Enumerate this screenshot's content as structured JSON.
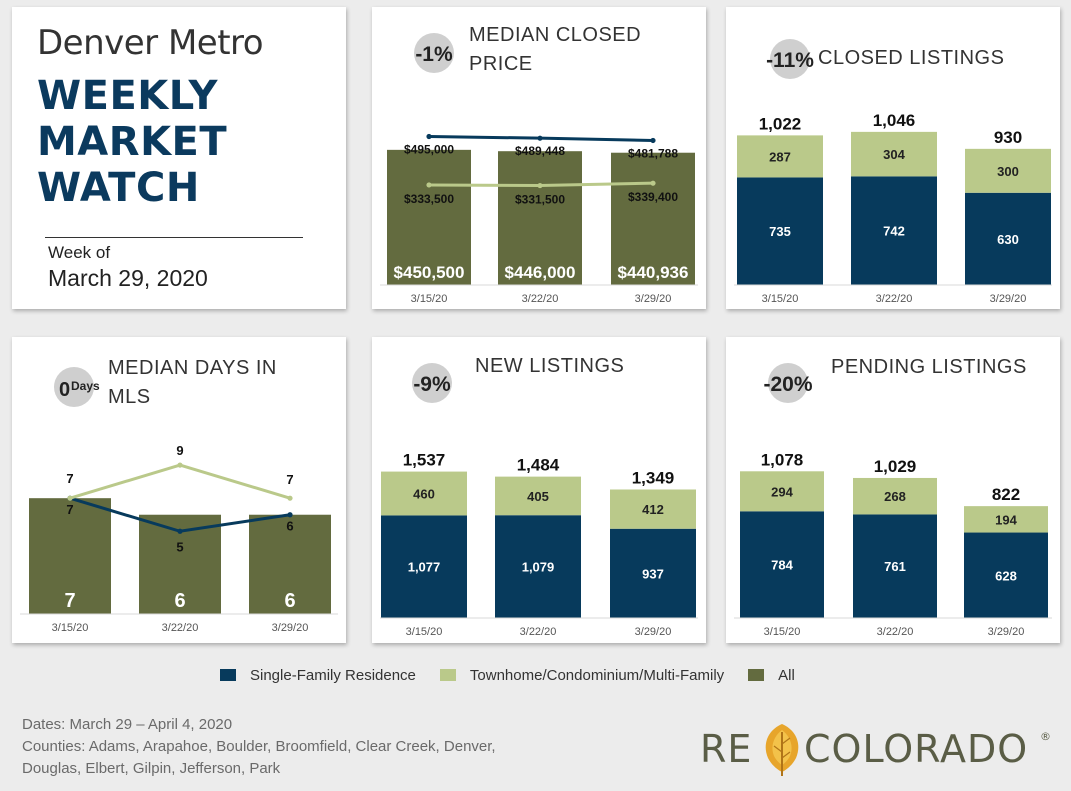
{
  "header": {
    "city": "Denver Metro",
    "line1": "WEEKLY",
    "line2": "MARKET",
    "line3": "WATCH",
    "week_label": "Week of",
    "week_date": "March 29, 2020"
  },
  "colors": {
    "sfr": "#073a5c",
    "townhome": "#bac98a",
    "all": "#636b3f",
    "badge": "#cfcfcf",
    "pill": "#bfbfbf"
  },
  "legend": {
    "sfr": "Single-Family Residence",
    "townhome": "Townhome/Condominium/Multi-Family",
    "all": "All"
  },
  "footer": {
    "line1": "Dates: March 29 – April 4, 2020",
    "line2": "Counties: Adams, Arapahoe, Boulder, Broomfield, Clear Creek, Denver,",
    "line3": "Douglas, Elbert, Gilpin, Jefferson, Park"
  },
  "logo": {
    "left": "RE",
    "right": "COLORADO",
    "mark": "®"
  },
  "chart_data": [
    {
      "id": "median-closed-price",
      "type": "bar+line",
      "title": [
        "MEDIAN CLOSED",
        "PRICE"
      ],
      "badge": "-1%",
      "categories": [
        "3/15/20",
        "3/22/20",
        "3/29/20"
      ],
      "ylim": [
        0,
        560000
      ],
      "bars": {
        "name": "All",
        "values": [
          450500,
          446000,
          440936
        ],
        "labels": [
          "$450,500",
          "$446,000",
          "$440,936"
        ]
      },
      "lines": [
        {
          "name": "Single-Family Residence",
          "values": [
            495000,
            489448,
            481788
          ],
          "labels": [
            "$495,000",
            "$489,448",
            "$481,788"
          ]
        },
        {
          "name": "Townhome/Condominium/Multi-Family",
          "values": [
            333500,
            331500,
            339400
          ],
          "labels": [
            "$333,500",
            "$331,500",
            "$339,400"
          ]
        }
      ]
    },
    {
      "id": "closed-listings",
      "type": "stacked-bar",
      "title": [
        "CLOSED LISTINGS"
      ],
      "badge": "-11%",
      "categories": [
        "3/15/20",
        "3/22/20",
        "3/29/20"
      ],
      "ylim": [
        0,
        1250
      ],
      "series": [
        {
          "name": "Single-Family Residence",
          "values": [
            735,
            742,
            630
          ]
        },
        {
          "name": "Townhome/Condominium/Multi-Family",
          "values": [
            287,
            304,
            300
          ]
        }
      ],
      "totals": [
        "1,022",
        "1,046",
        "930"
      ]
    },
    {
      "id": "median-days-in-mls",
      "type": "bar+line",
      "title": [
        "MEDIAN DAYS IN",
        "MLS"
      ],
      "badge": "0",
      "badge_suffix": "Days",
      "categories": [
        "3/15/20",
        "3/22/20",
        "3/29/20"
      ],
      "ylim": [
        0,
        11
      ],
      "bars": {
        "name": "All",
        "values": [
          7,
          6,
          6
        ],
        "labels": [
          "7",
          "6",
          "6"
        ]
      },
      "lines": [
        {
          "name": "Single-Family Residence",
          "values": [
            7,
            5,
            6
          ],
          "labels": [
            "7",
            "5",
            "6"
          ]
        },
        {
          "name": "Townhome/Condominium/Multi-Family",
          "values": [
            7,
            9,
            7
          ],
          "labels": [
            "7",
            "9",
            "7"
          ]
        }
      ]
    },
    {
      "id": "new-listings",
      "type": "stacked-bar",
      "title": [
        "NEW LISTINGS"
      ],
      "badge": "-9%",
      "categories": [
        "3/15/20",
        "3/22/20",
        "3/29/20"
      ],
      "ylim": [
        0,
        1900
      ],
      "series": [
        {
          "name": "Single-Family Residence",
          "values": [
            1077,
            1079,
            937
          ],
          "labels": [
            "1,077",
            "1,079",
            "937"
          ]
        },
        {
          "name": "Townhome/Condominium/Multi-Family",
          "values": [
            460,
            405,
            412
          ]
        }
      ],
      "totals": [
        "1,537",
        "1,484",
        "1,349"
      ]
    },
    {
      "id": "pending-listings",
      "type": "stacked-bar",
      "title": [
        "PENDING LISTINGS"
      ],
      "badge": "-20%",
      "categories": [
        "3/15/20",
        "3/22/20",
        "3/29/20"
      ],
      "ylim": [
        0,
        1330
      ],
      "series": [
        {
          "name": "Single-Family Residence",
          "values": [
            784,
            761,
            628
          ]
        },
        {
          "name": "Townhome/Condominium/Multi-Family",
          "values": [
            294,
            268,
            194
          ]
        }
      ],
      "totals": [
        "1,078",
        "1,029",
        "822"
      ]
    }
  ]
}
